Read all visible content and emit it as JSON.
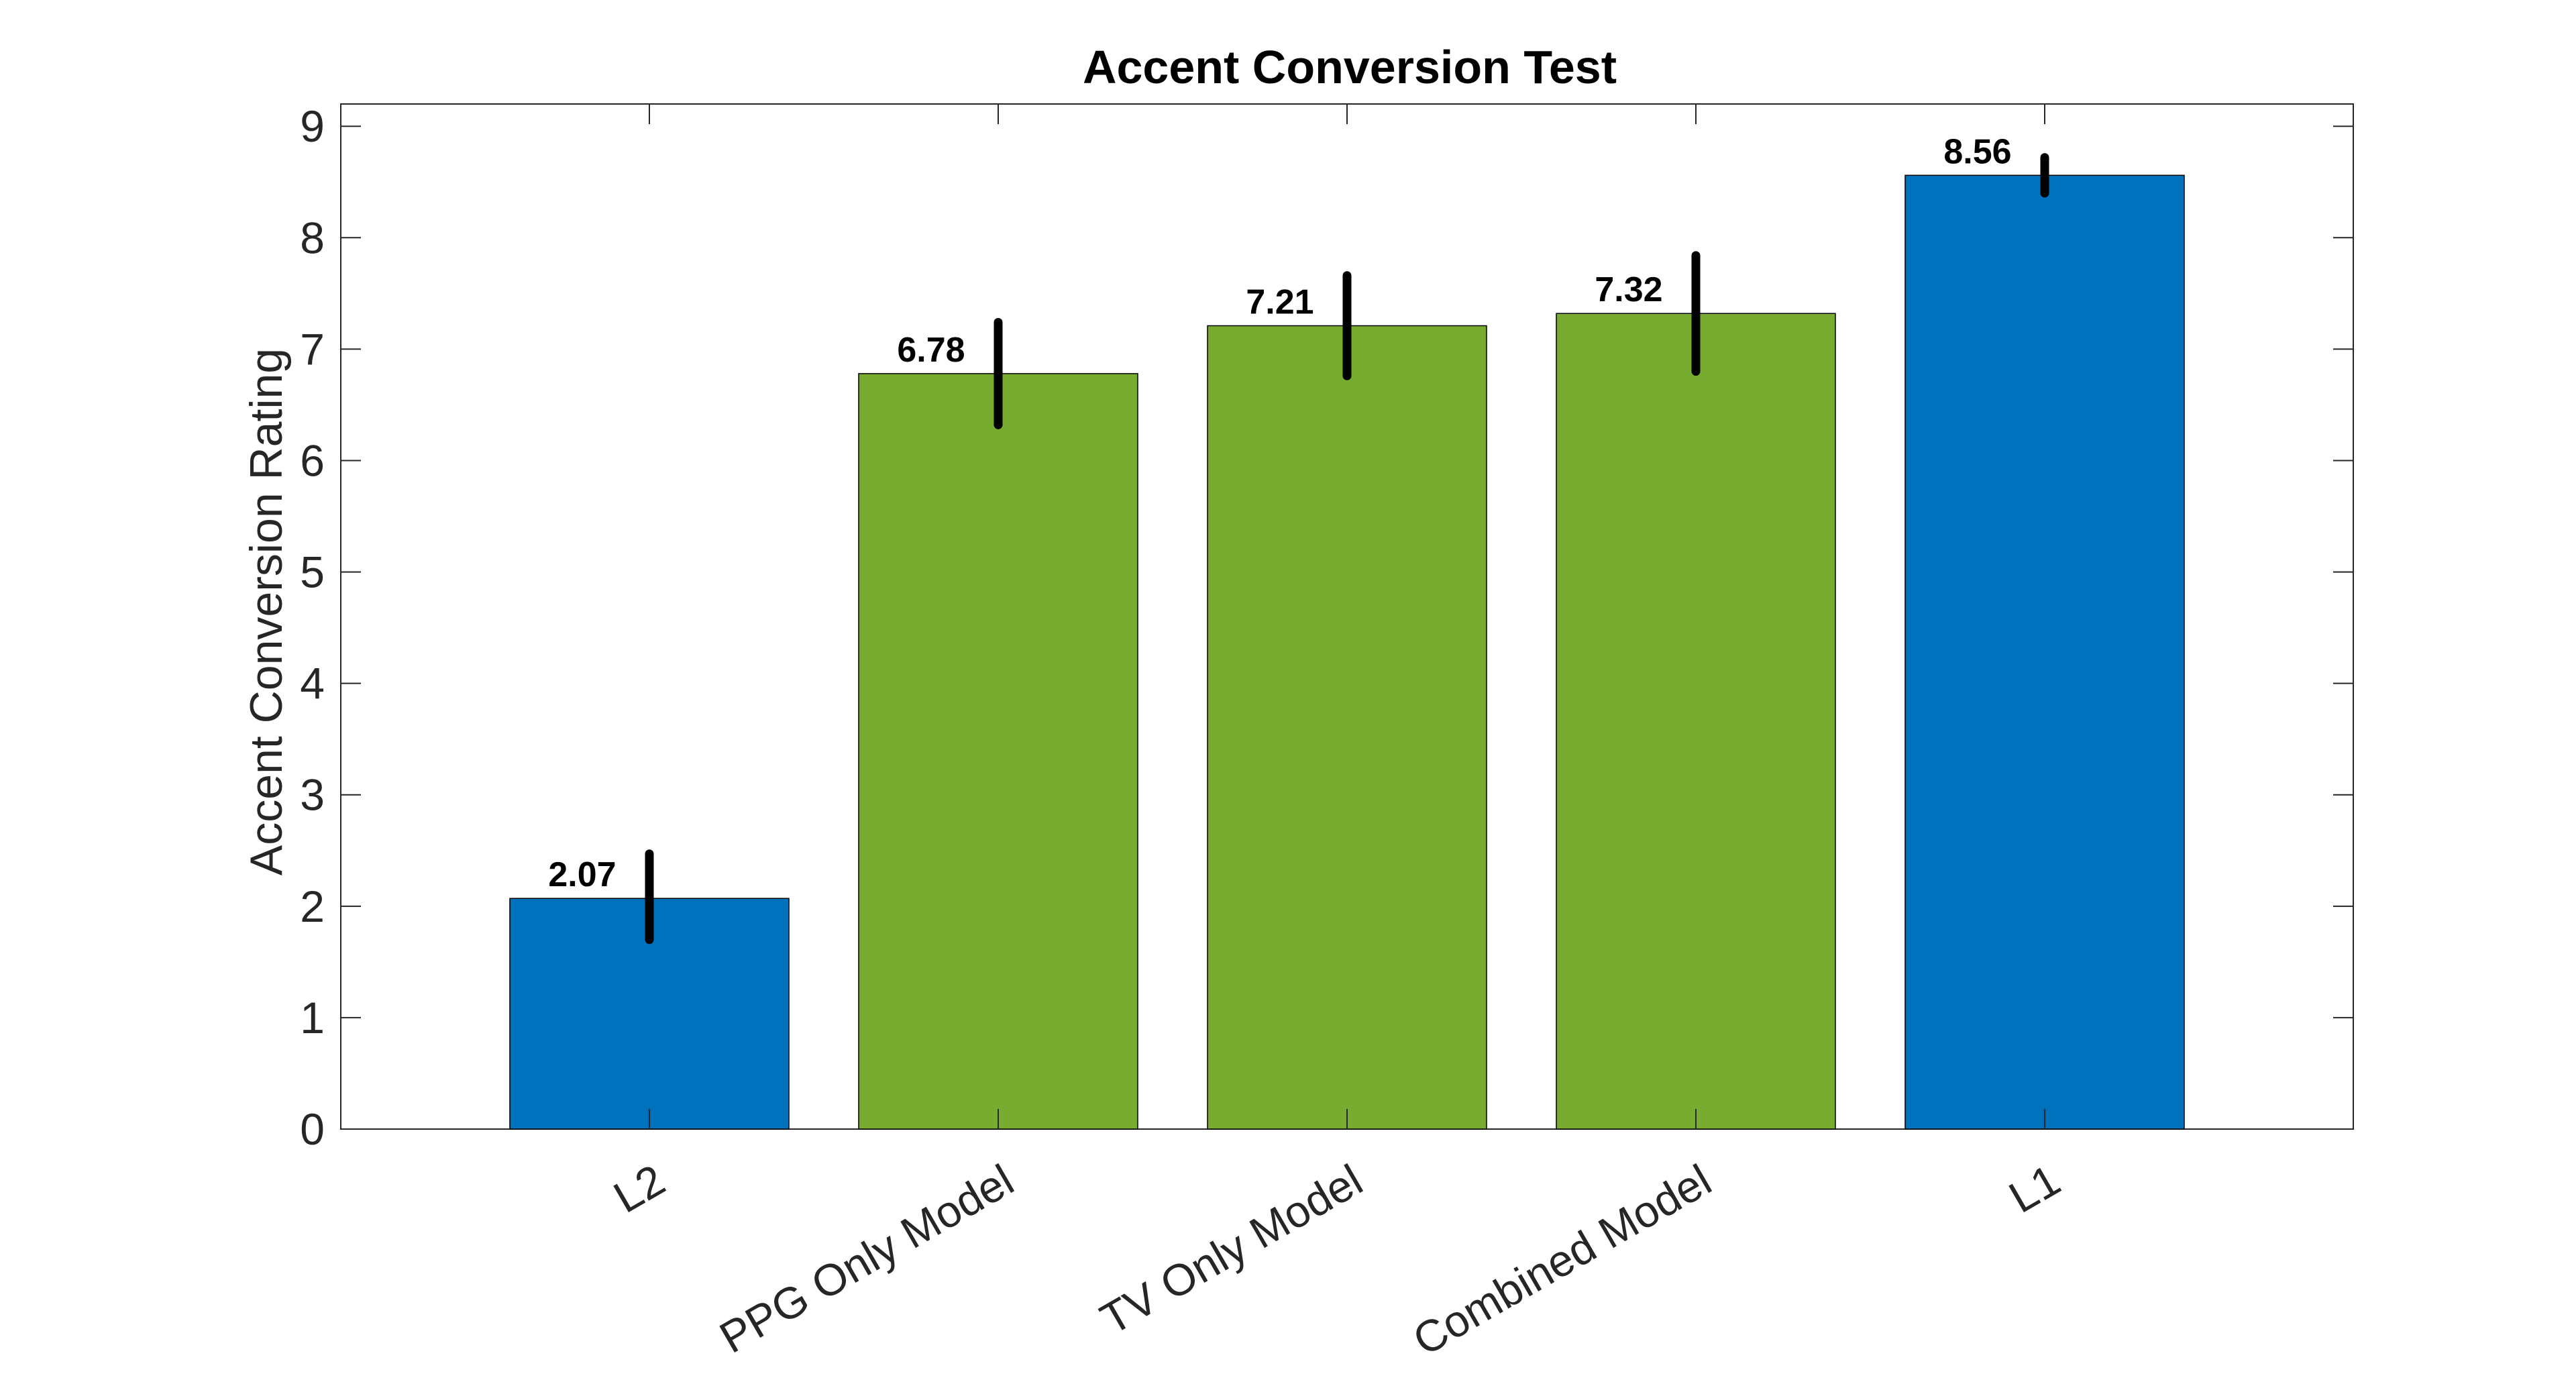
{
  "chart_data": {
    "type": "bar",
    "title": "Accent Conversion Test",
    "xlabel": "",
    "ylabel": "Accent Conversion Rating",
    "ylim": [
      0,
      9.2
    ],
    "yticks": [
      0,
      1,
      2,
      3,
      4,
      5,
      6,
      7,
      8,
      9
    ],
    "categories": [
      "L2",
      "PPG Only Model",
      "TV Only Model",
      "Combined Model",
      "L1"
    ],
    "values": [
      2.07,
      6.78,
      7.21,
      7.32,
      8.56
    ],
    "data_labels": [
      "2.07",
      "6.78",
      "7.21",
      "7.32",
      "8.56"
    ],
    "error_bars": {
      "lower": [
        1.7,
        6.32,
        6.76,
        6.8,
        8.4
      ],
      "upper": [
        2.47,
        7.24,
        7.66,
        7.84,
        8.72
      ]
    },
    "bar_colors": [
      "#0072BD",
      "#77AC30",
      "#77AC30",
      "#77AC30",
      "#0072BD"
    ],
    "error_bar_color": "#000000",
    "grid": false,
    "legend": "none"
  }
}
